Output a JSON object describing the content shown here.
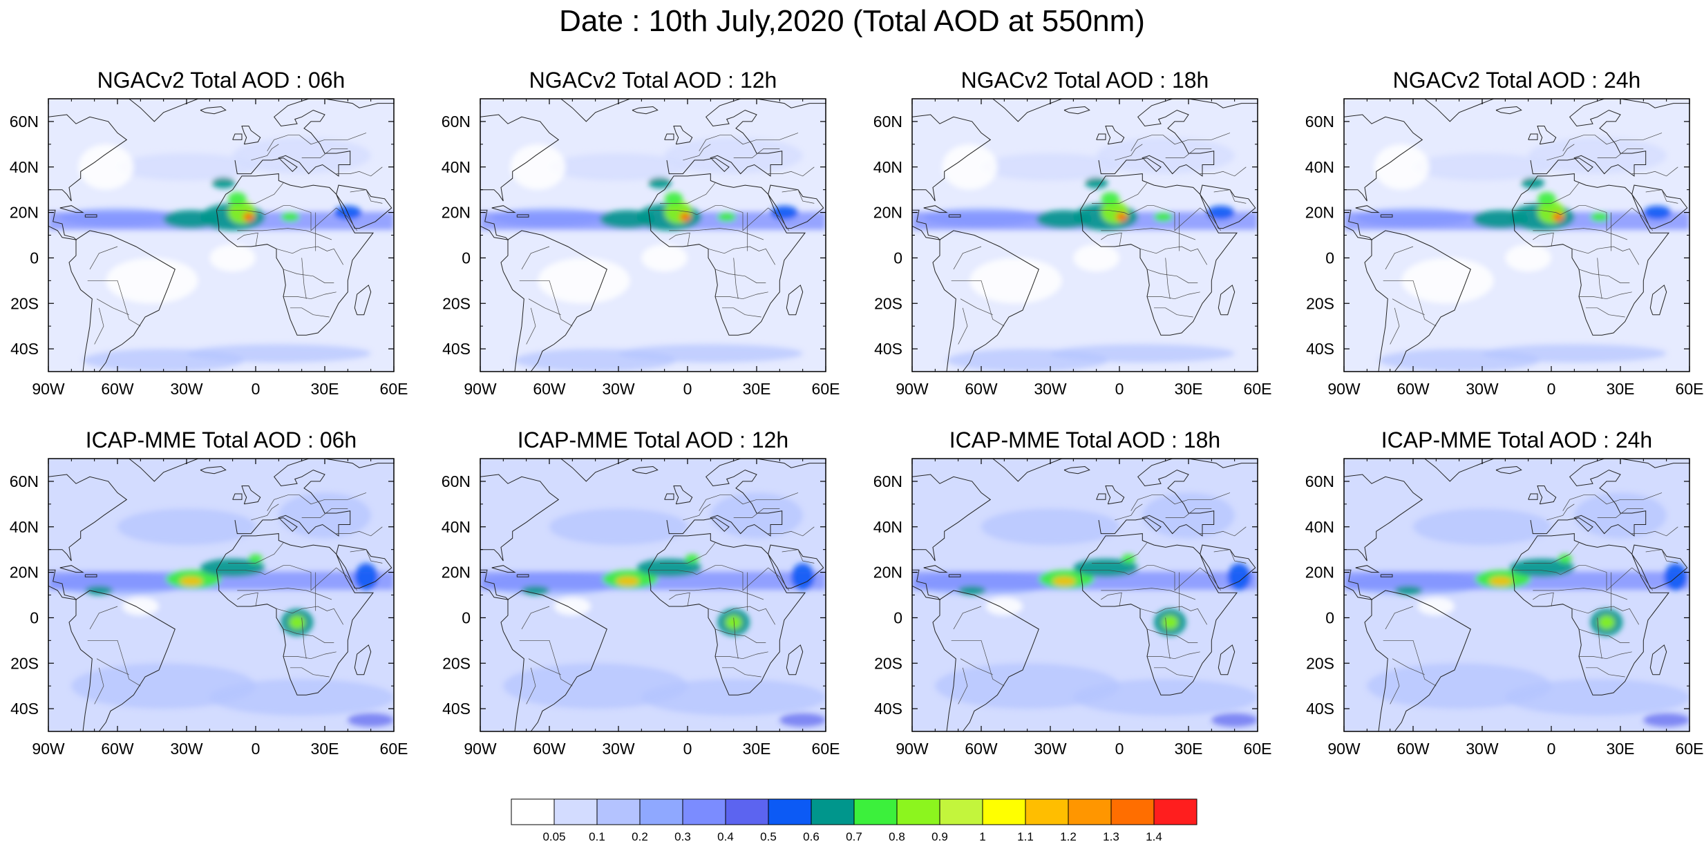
{
  "title": "Date : 10th July,2020 (Total AOD at 550nm)",
  "panels": [
    {
      "title": "NGACv2 Total AOD : 06h",
      "model": "NGACv2",
      "hour": "06h"
    },
    {
      "title": "NGACv2 Total AOD : 12h",
      "model": "NGACv2",
      "hour": "12h"
    },
    {
      "title": "NGACv2 Total AOD : 18h",
      "model": "NGACv2",
      "hour": "18h"
    },
    {
      "title": "NGACv2 Total AOD : 24h",
      "model": "NGACv2",
      "hour": "24h"
    },
    {
      "title": "ICAP-MME Total AOD : 06h",
      "model": "ICAP-MME",
      "hour": "06h"
    },
    {
      "title": "ICAP-MME Total AOD : 12h",
      "model": "ICAP-MME",
      "hour": "12h"
    },
    {
      "title": "ICAP-MME Total AOD : 18h",
      "model": "ICAP-MME",
      "hour": "18h"
    },
    {
      "title": "ICAP-MME Total AOD : 24h",
      "model": "ICAP-MME",
      "hour": "24h"
    }
  ],
  "lon_ticks": [
    {
      "value": -90,
      "label": "90W"
    },
    {
      "value": -60,
      "label": "60W"
    },
    {
      "value": -30,
      "label": "30W"
    },
    {
      "value": 0,
      "label": "0"
    },
    {
      "value": 30,
      "label": "30E"
    },
    {
      "value": 60,
      "label": "60E"
    }
  ],
  "lat_ticks": [
    {
      "value": 60,
      "label": "60N"
    },
    {
      "value": 40,
      "label": "40N"
    },
    {
      "value": 20,
      "label": "20N"
    },
    {
      "value": 0,
      "label": "0"
    },
    {
      "value": -20,
      "label": "20S"
    },
    {
      "value": -40,
      "label": "40S"
    }
  ],
  "map_extent": {
    "lon": [
      -90,
      60
    ],
    "lat": [
      -50,
      70
    ]
  },
  "colorbar": {
    "labels": [
      "0.05",
      "0.1",
      "0.2",
      "0.3",
      "0.4",
      "0.5",
      "0.6",
      "0.7",
      "0.8",
      "0.9",
      "1",
      "1.1",
      "1.2",
      "1.3",
      "1.4"
    ],
    "colors": [
      "#ffffff",
      "#d3dcff",
      "#b4c3ff",
      "#8fa8ff",
      "#7b8cff",
      "#5c64f0",
      "#0c5af5",
      "#00968c",
      "#3cf03c",
      "#8cf51e",
      "#c3f53c",
      "#ffff00",
      "#ffbe00",
      "#ff9600",
      "#ff6e00",
      "#ff1e1e"
    ]
  }
}
